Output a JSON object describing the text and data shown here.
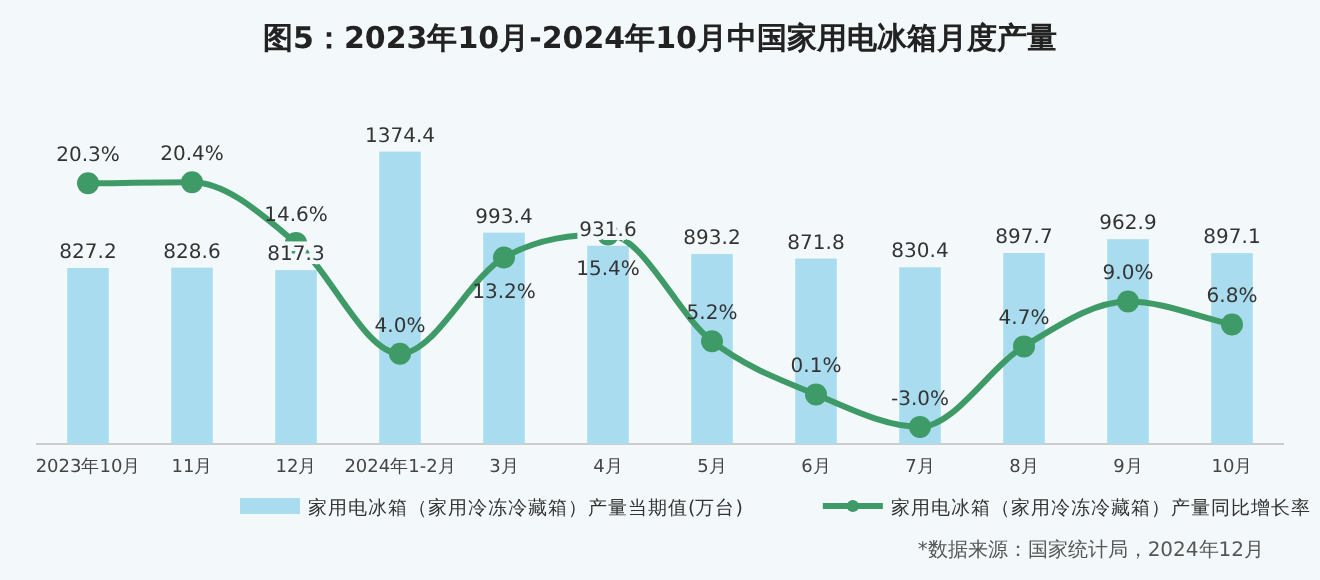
{
  "chart_data": {
    "type": "bar",
    "title": "图5：2023年10月-2024年10月中国家用电冰箱月度产量",
    "categories": [
      "2023年10月",
      "11月",
      "12月",
      "2024年1-2月",
      "3月",
      "4月",
      "5月",
      "6月",
      "7月",
      "8月",
      "9月",
      "10月"
    ],
    "series": [
      {
        "name": "家用电冰箱（家用冷冻冷藏箱）产量当期值(万台)",
        "color": "#a9dcef",
        "values": [
          827.2,
          828.6,
          817.3,
          1374.4,
          993.4,
          931.6,
          893.2,
          871.8,
          830.4,
          897.7,
          962.9,
          897.1
        ],
        "value_labels": [
          "827.2",
          "828.6",
          "817.3",
          "1374.4",
          "993.4",
          "931.6",
          "893.2",
          "871.8",
          "830.4",
          "897.7",
          "962.9",
          "897.1"
        ]
      },
      {
        "type": "line",
        "axis": "y2",
        "name": "家用电冰箱（家用冷冻冷藏箱）产量同比增长率",
        "color": "#3e9a66",
        "values": [
          20.3,
          20.4,
          14.6,
          4.0,
          13.2,
          15.4,
          5.2,
          0.1,
          -3.0,
          4.7,
          9.0,
          6.8
        ],
        "value_labels": [
          "20.3%",
          "20.4%",
          "14.6%",
          "4.0%",
          "13.2%",
          "15.4%",
          "5.2%",
          "0.1%",
          "-3.0%",
          "4.7%",
          "9.0%",
          "6.8%"
        ]
      }
    ],
    "marker": "circle",
    "legend": "bottom",
    "annotations": [
      "*数据来源：国家统计局，2024年12月"
    ]
  }
}
